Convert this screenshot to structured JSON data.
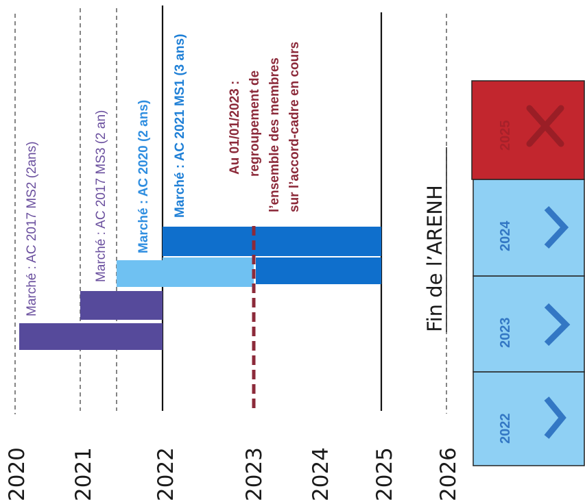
{
  "years": [
    "2020",
    "2021",
    "2022",
    "2023",
    "2024",
    "2025",
    "2026"
  ],
  "contracts": [
    {
      "label": "Marché : AC 2017 MS2 (2ans)",
      "color": "#5b4ba0"
    },
    {
      "label": "Marché : AC 2017 MS3 (2 an)",
      "color": "#6a4f9e"
    },
    {
      "label": "Marché : AC 2020 (2 ans)",
      "color": "#2f8ee0"
    },
    {
      "label": "Marché : AC 2021 MS1 (3 ans)",
      "color": "#1e7fd6"
    }
  ],
  "note": {
    "lines": [
      "Au 01/01/2023 :",
      "regroupement de",
      "l’ensemble des membres",
      "sur l’accord-cadre en cours"
    ],
    "color": "#8c2a3a"
  },
  "fin_arenh": "Fin de l’ARENH",
  "year_boxes": [
    {
      "year": "2022",
      "status": "check",
      "icon": "checkmark-icon"
    },
    {
      "year": "2023",
      "status": "check",
      "icon": "checkmark-icon"
    },
    {
      "year": "2024",
      "status": "check",
      "icon": "checkmark-icon"
    },
    {
      "year": "2025",
      "status": "cross",
      "icon": "cross-icon"
    }
  ],
  "colors": {
    "purple_bar": "#564a9b",
    "light_blue_bar": "#6fc1f2",
    "dark_blue_bar": "#0f6fcc",
    "box_ok": "#8fd0f4",
    "box_ko": "#c2262e"
  }
}
